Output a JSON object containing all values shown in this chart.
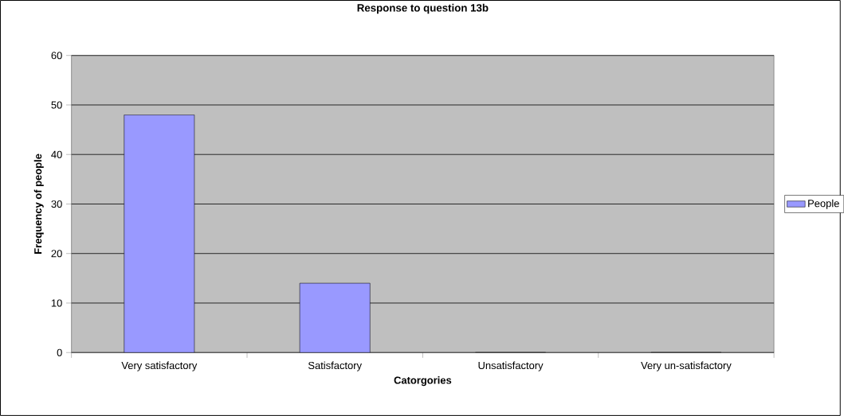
{
  "chart_data": {
    "type": "bar",
    "title": "Response to question 13b",
    "xlabel": "Catorgories",
    "ylabel": "Frequency of people",
    "categories": [
      "Very satisfactory",
      "Satisfactory",
      "Unsatisfactory",
      "Very un-satisfactory"
    ],
    "series": [
      {
        "name": "People",
        "color": "#9999ff",
        "values": [
          48,
          14,
          0,
          0
        ]
      }
    ],
    "ylim": [
      0,
      60
    ],
    "yticks": [
      0,
      10,
      20,
      30,
      40,
      50,
      60
    ],
    "grid": "y",
    "legend": "right"
  }
}
